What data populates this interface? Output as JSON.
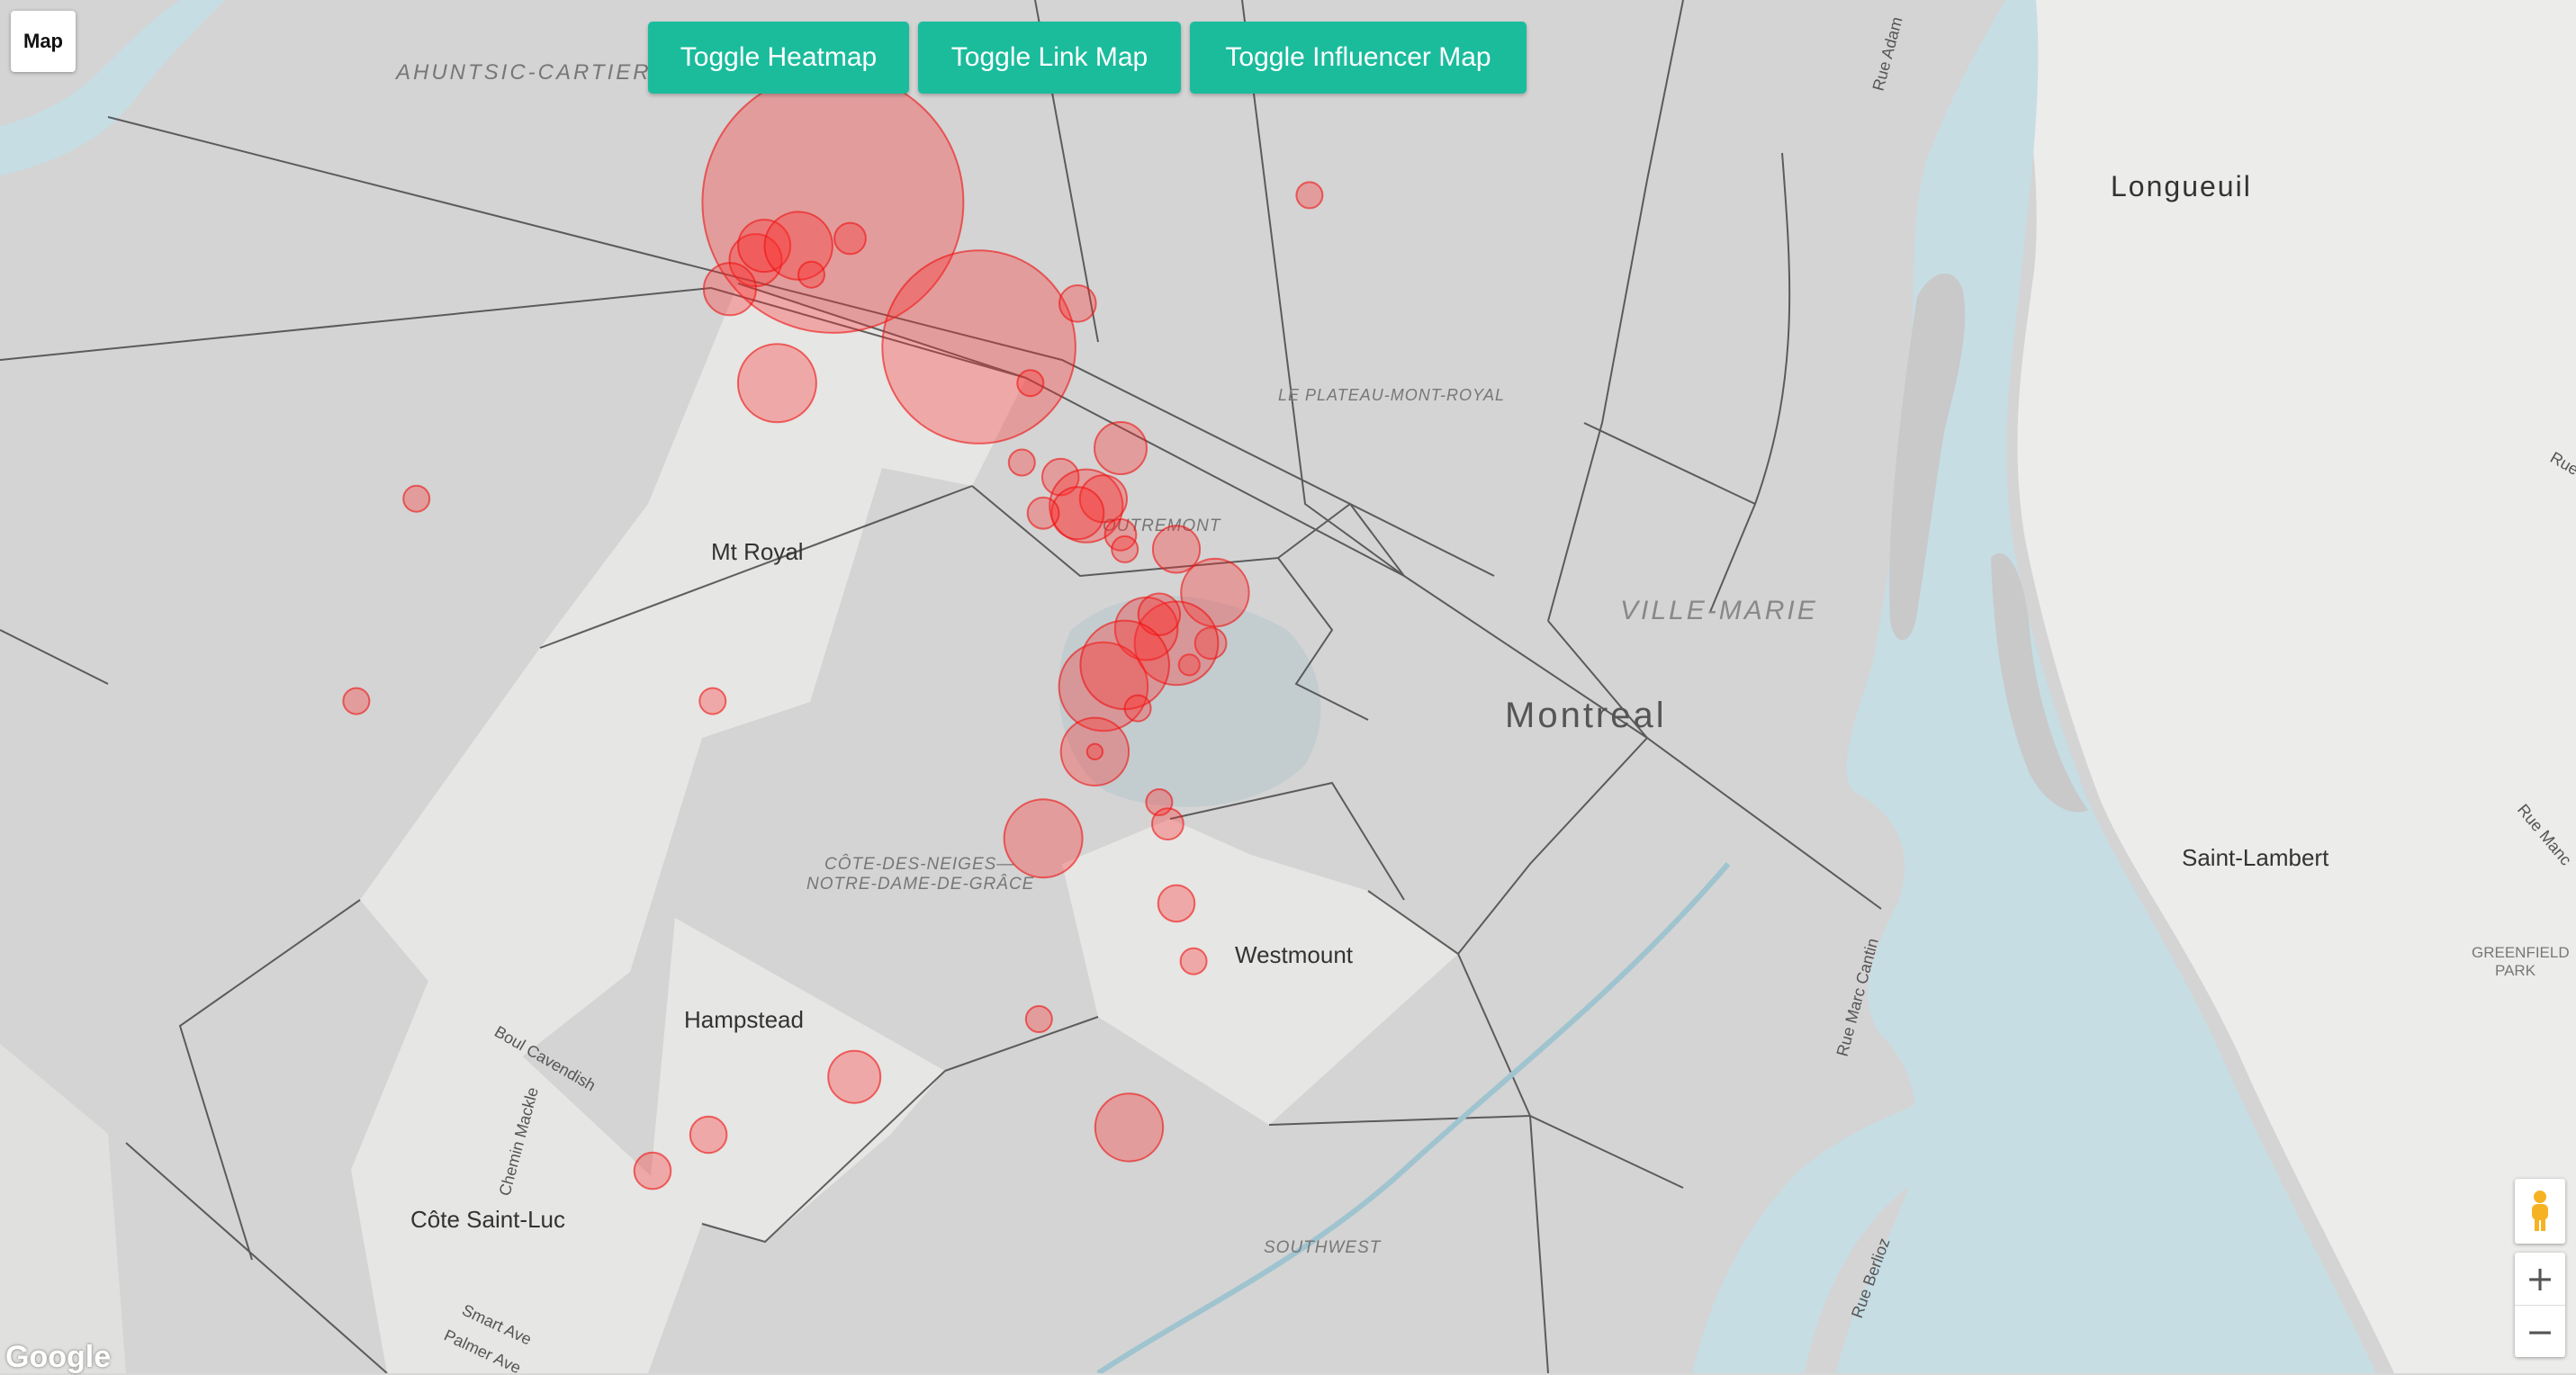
{
  "window": {
    "map_type_label": "Map"
  },
  "toolbar": {
    "heatmap_label": "Toggle Heatmap",
    "linkmap_label": "Toggle Link Map",
    "influencer_label": "Toggle Influencer Map"
  },
  "map": {
    "colors": {
      "water": "#c6dde4",
      "land": "#d4d4d4",
      "land_light": "#ececea",
      "marker_fill": "#ff2a2a",
      "marker_stroke": "#ee1111"
    },
    "place_labels": {
      "ahuntsic": "AHUNTSIC-CARTIERVIL",
      "longueuil": "Longueuil",
      "plateau": "LE PLATEAU-MONT-ROYAL",
      "outremont": "OUTREMONT",
      "mtroyal": "Mt Royal",
      "villemarie": "VILLE-MARIE",
      "montreal": "Montreal",
      "cdn1": "CÔTE-DES-NEIGES—",
      "cdn2": "NOTRE-DAME-DE-GRÂCE",
      "westmount": "Westmount",
      "hampstead": "Hampstead",
      "stlambert": "Saint-Lambert",
      "greenfield1": "GREENFIELD",
      "greenfield2": "PARK",
      "cotestluc": "Côte Saint-Luc",
      "southwest": "SOUTHWEST"
    },
    "street_labels": {
      "rue_adam": "Rue Adam",
      "boul_cavendish": "Boul Cavendish",
      "chemin_mackle": "Chemin Mackle",
      "smart_ave": "Smart Ave",
      "palmer_ave": "Palmer Ave",
      "rue_marc_cantin": "Rue Marc Cantin",
      "rue_berlioz": "Rue Berlioz",
      "rue_manc": "Rue Manc",
      "rue_r": "Rue"
    },
    "markers": [
      {
        "lng": -73.596,
        "lat": 45.552,
        "size": 5
      },
      {
        "lng": -73.614,
        "lat": 45.544,
        "size": 1
      },
      {
        "lng": -73.62,
        "lat": 45.54,
        "size": 1
      },
      {
        "lng": -73.612,
        "lat": 45.546,
        "size": 1
      },
      {
        "lng": -73.604,
        "lat": 45.546,
        "size": 1.3
      },
      {
        "lng": -73.592,
        "lat": 45.547,
        "size": 0.6
      },
      {
        "lng": -73.601,
        "lat": 45.542,
        "size": 0.5
      },
      {
        "lng": -73.562,
        "lat": 45.532,
        "size": 3.7
      },
      {
        "lng": -73.609,
        "lat": 45.527,
        "size": 1.5
      },
      {
        "lng": -73.55,
        "lat": 45.527,
        "size": 0.5
      },
      {
        "lng": -73.539,
        "lat": 45.538,
        "size": 0.7
      },
      {
        "lng": -73.485,
        "lat": 45.553,
        "size": 0.5
      },
      {
        "lng": -73.529,
        "lat": 45.518,
        "size": 1
      },
      {
        "lng": -73.543,
        "lat": 45.514,
        "size": 0.7
      },
      {
        "lng": -73.552,
        "lat": 45.516,
        "size": 0.5
      },
      {
        "lng": -73.537,
        "lat": 45.51,
        "size": 1.4
      },
      {
        "lng": -73.533,
        "lat": 45.511,
        "size": 0.9
      },
      {
        "lng": -73.539,
        "lat": 45.509,
        "size": 1
      },
      {
        "lng": -73.547,
        "lat": 45.509,
        "size": 0.6
      },
      {
        "lng": -73.529,
        "lat": 45.506,
        "size": 0.6
      },
      {
        "lng": -73.528,
        "lat": 45.504,
        "size": 0.5
      },
      {
        "lng": -73.516,
        "lat": 45.504,
        "size": 0.9
      },
      {
        "lng": -73.507,
        "lat": 45.498,
        "size": 1.3
      },
      {
        "lng": -73.508,
        "lat": 45.491,
        "size": 0.6
      },
      {
        "lng": -73.513,
        "lat": 45.488,
        "size": 0.4
      },
      {
        "lng": -73.516,
        "lat": 45.491,
        "size": 1.6
      },
      {
        "lng": -73.523,
        "lat": 45.493,
        "size": 1.2
      },
      {
        "lng": -73.52,
        "lat": 45.495,
        "size": 0.8
      },
      {
        "lng": -73.533,
        "lat": 45.485,
        "size": 1.7
      },
      {
        "lng": -73.528,
        "lat": 45.488,
        "size": 1.7
      },
      {
        "lng": -73.525,
        "lat": 45.482,
        "size": 0.5
      },
      {
        "lng": -73.535,
        "lat": 45.476,
        "size": 1.3
      },
      {
        "lng": -73.535,
        "lat": 45.476,
        "size": 0.3
      },
      {
        "lng": -73.547,
        "lat": 45.464,
        "size": 1.5
      },
      {
        "lng": -73.52,
        "lat": 45.469,
        "size": 0.5
      },
      {
        "lng": -73.518,
        "lat": 45.466,
        "size": 0.6
      },
      {
        "lng": -73.516,
        "lat": 45.455,
        "size": 0.7
      },
      {
        "lng": -73.512,
        "lat": 45.447,
        "size": 0.5
      },
      {
        "lng": -73.548,
        "lat": 45.439,
        "size": 0.5
      },
      {
        "lng": -73.591,
        "lat": 45.431,
        "size": 1
      },
      {
        "lng": -73.527,
        "lat": 45.424,
        "size": 1.3
      },
      {
        "lng": -73.625,
        "lat": 45.423,
        "size": 0.7
      },
      {
        "lng": -73.638,
        "lat": 45.418,
        "size": 0.7
      },
      {
        "lng": -73.624,
        "lat": 45.483,
        "size": 0.5
      },
      {
        "lng": -73.693,
        "lat": 45.511,
        "size": 0.5
      },
      {
        "lng": -73.707,
        "lat": 45.483,
        "size": 0.5
      }
    ]
  },
  "attribution": {
    "google": "Google"
  }
}
